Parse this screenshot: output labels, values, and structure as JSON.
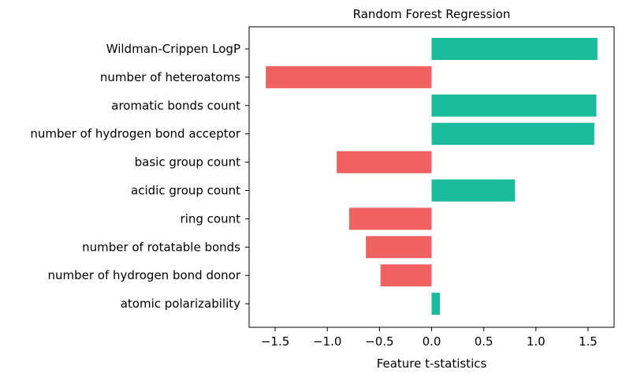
{
  "chart_data": {
    "type": "bar",
    "orientation": "horizontal",
    "title": "Random Forest Regression",
    "xlabel": "Feature t-statistics",
    "ylabel": "",
    "xlim": [
      -1.75,
      1.75
    ],
    "xticks": [
      -1.5,
      -1.0,
      -0.5,
      0.0,
      0.5,
      1.0,
      1.5
    ],
    "xtick_labels": [
      "−1.5",
      "−1.0",
      "−0.5",
      "0.0",
      "0.5",
      "1.0",
      "1.5"
    ],
    "grid": false,
    "legend": "none",
    "categories": [
      "Wildman-Crippen LogP",
      "number of heteroatoms",
      "aromatic bonds count",
      "number of hydrogen bond acceptor",
      "basic group count",
      "acidic group count",
      "ring count",
      "number of rotatable bonds",
      "number of hydrogen bond donor",
      "atomic polarizability"
    ],
    "values": [
      1.59,
      -1.59,
      1.58,
      1.56,
      -0.91,
      0.8,
      -0.79,
      -0.63,
      -0.49,
      0.08
    ],
    "highlighted_labels": [
      "Wildman-Crippen LogP",
      "basic group count",
      "number of hydrogen bond donor"
    ],
    "colors": {
      "positive": "#1abc9c",
      "negative": "#f06262",
      "highlight_label": "#800080",
      "default_label": "#000000",
      "axis": "#000000"
    }
  }
}
